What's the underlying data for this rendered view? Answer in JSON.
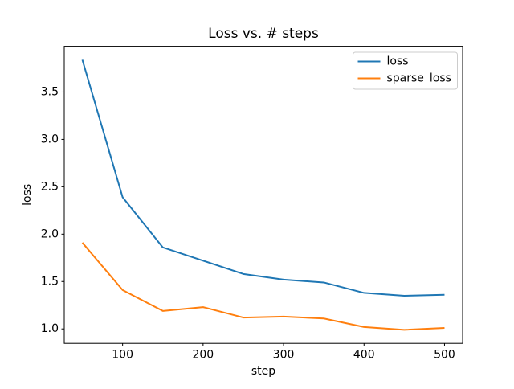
{
  "figure": {
    "background": "#ffffff",
    "spine_color": "#000000"
  },
  "chart_data": {
    "type": "line",
    "title": "Loss vs. # steps",
    "xlabel": "step",
    "ylabel": "loss",
    "x": [
      50,
      100,
      150,
      200,
      250,
      300,
      350,
      400,
      450,
      500
    ],
    "series": [
      {
        "name": "loss",
        "color": "#1f77b4",
        "values": [
          3.84,
          2.39,
          1.86,
          1.72,
          1.58,
          1.52,
          1.49,
          1.38,
          1.35,
          1.36
        ]
      },
      {
        "name": "sparse_loss",
        "color": "#ff7f0e",
        "values": [
          1.91,
          1.41,
          1.19,
          1.23,
          1.12,
          1.13,
          1.11,
          1.02,
          0.99,
          1.01
        ]
      }
    ],
    "xlim": [
      27.5,
      522.5
    ],
    "ylim": [
      0.8475,
      3.9825
    ],
    "x_ticks": [
      100,
      200,
      300,
      400,
      500
    ],
    "y_ticks": [
      1.0,
      1.5,
      2.0,
      2.5,
      3.0,
      3.5
    ],
    "grid": false,
    "legend_position": "upper right",
    "legend_entries": [
      "loss",
      "sparse_loss"
    ],
    "legend_border_color": "#cccccc"
  }
}
